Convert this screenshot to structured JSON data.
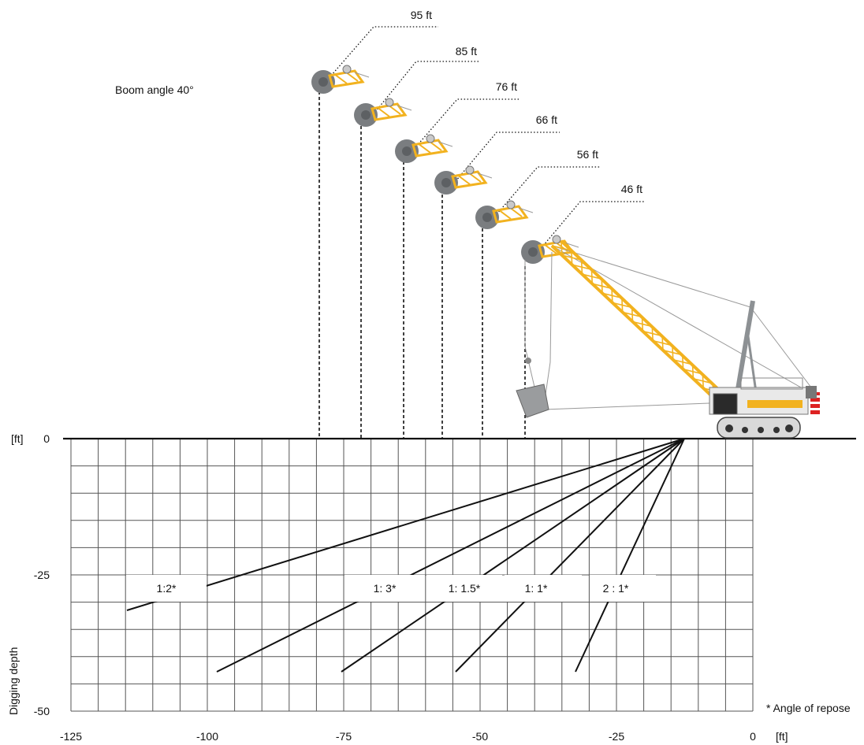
{
  "boom_angle_label": "Boom angle 40°",
  "boom_lengths": [
    "95 ft",
    "85 ft",
    "76 ft",
    "66 ft",
    "56 ft",
    "46 ft"
  ],
  "slope_labels": [
    "1:2*",
    "1: 3*",
    "1: 1.5*",
    "1: 1*",
    "2 : 1*"
  ],
  "axis": {
    "ylabel": "Digging depth",
    "y_unit": "[ft]",
    "x_unit": "[ft]",
    "y_ticks": [
      "0",
      "-25",
      "-50"
    ],
    "x_ticks": [
      "-125",
      "-100",
      "-75",
      "-50",
      "-25",
      "0"
    ]
  },
  "footnote": "* Angle of repose",
  "colors": {
    "boom": "#f2b21f",
    "grid": "#555555",
    "ground": "#111111",
    "bucket": "#7a7d80"
  }
}
